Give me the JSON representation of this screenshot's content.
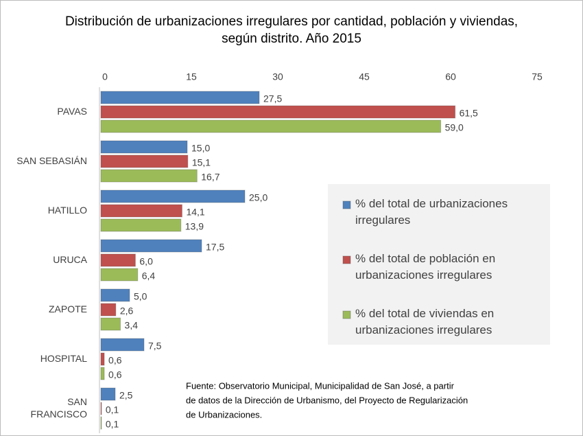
{
  "chart_data": {
    "type": "bar",
    "orientation": "horizontal",
    "title": [
      "Distribución de urbanizaciones irregulares por cantidad, población y viviendas,",
      "según distrito. Año 2015"
    ],
    "categories": [
      "PAVAS",
      "SAN SEBASIÁN",
      "HATILLO",
      "URUCA",
      "ZAPOTE",
      "HOSPITAL",
      "SAN FRANCISCO"
    ],
    "series": [
      {
        "name": "% del total de urbanizaciones irregulares",
        "color": "#4f81bd",
        "values": [
          27.5,
          15.0,
          25.0,
          17.5,
          5.0,
          7.5,
          2.5
        ],
        "value_labels": [
          "27,5",
          "15,0",
          "25,0",
          "17,5",
          "5,0",
          "7,5",
          "2,5"
        ]
      },
      {
        "name": "% del total de población en urbanizaciones irregulares",
        "color": "#c0504d",
        "values": [
          61.5,
          15.1,
          14.1,
          6.0,
          2.6,
          0.6,
          0.1
        ],
        "value_labels": [
          "61,5",
          "15,1",
          "14,1",
          "6,0",
          "2,6",
          "0,6",
          "0,1"
        ]
      },
      {
        "name": "% del total de viviendas en urbanizaciones irregulares",
        "color": "#9bbb59",
        "values": [
          59.0,
          16.7,
          13.9,
          6.4,
          3.4,
          0.6,
          0.1
        ],
        "value_labels": [
          "59,0",
          "16,7",
          "13,9",
          "6,4",
          "3,4",
          "0,6",
          "0,1"
        ]
      }
    ],
    "xlim": [
      0,
      75
    ],
    "xticks": [
      0,
      15,
      30,
      45,
      60,
      75
    ],
    "grid": false,
    "legend": "right",
    "note": [
      "Fuente: Observatorio Municipal, Municipalidad de San José, a partir",
      "de datos de la Dirección de Urbanismo, del Proyecto de Regularización",
      " de Urbanizaciones."
    ]
  }
}
